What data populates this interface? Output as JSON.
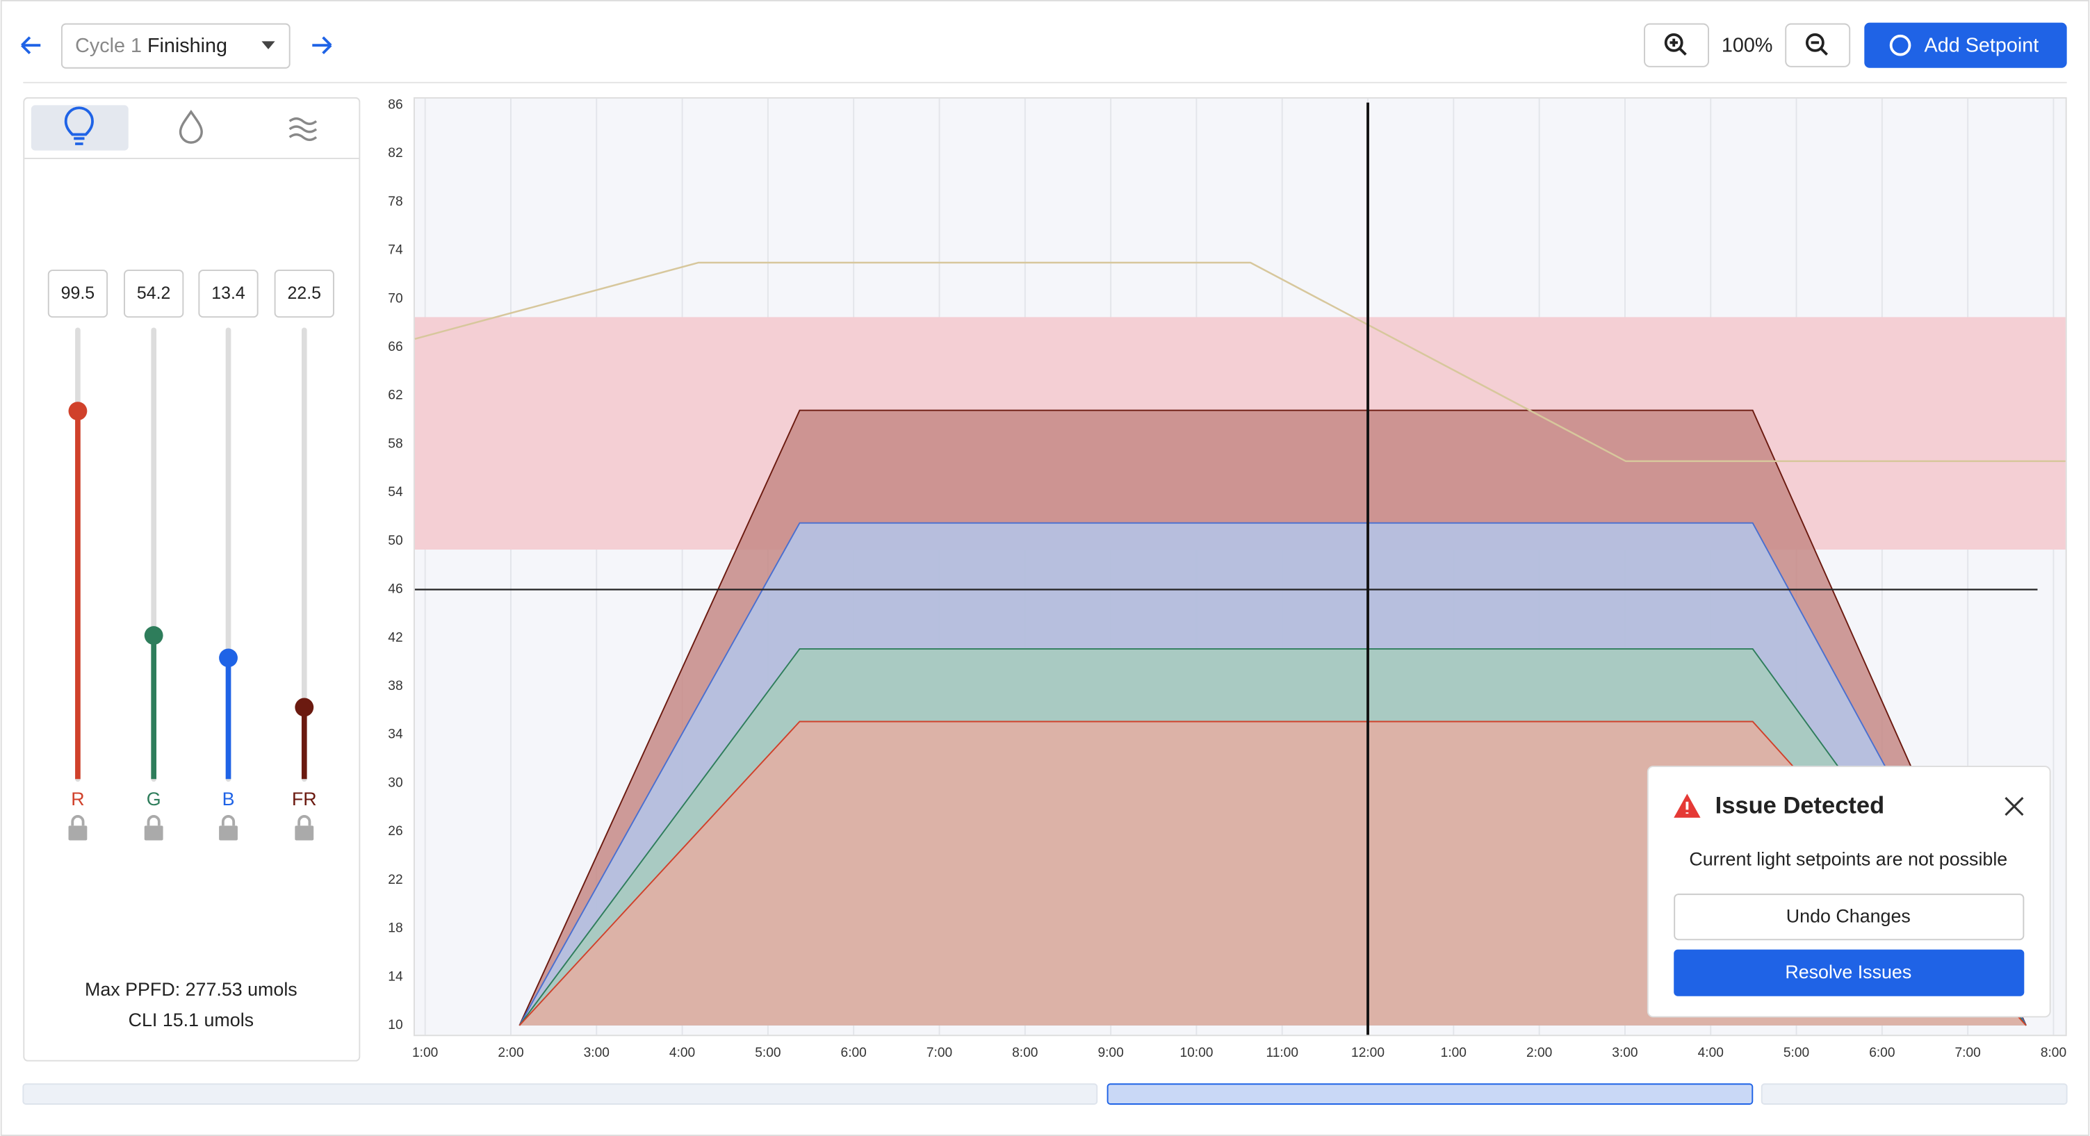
{
  "toolbar": {
    "cycle_prefix": "Cycle 1",
    "cycle_name": "Finishing",
    "zoom": "100%",
    "add_button": "Add Setpoint"
  },
  "sliders": [
    {
      "value": "99.5",
      "label": "R",
      "color": "#d0412b",
      "level": 82
    },
    {
      "value": "54.2",
      "label": "G",
      "color": "#2e7d5b",
      "level": 32
    },
    {
      "value": "13.4",
      "label": "B",
      "color": "#1f63e6",
      "level": 27
    },
    {
      "value": "22.5",
      "label": "FR",
      "color": "#6b1a10",
      "level": 16
    }
  ],
  "summary": {
    "ppfd_label": "Max PPFD:",
    "ppfd_value": "277.53 umols",
    "cli_label": "CLI",
    "cli_value": "15.1 umols"
  },
  "chart_data": {
    "type": "area",
    "ylim": [
      10,
      86
    ],
    "yticks": [
      10,
      14,
      18,
      22,
      26,
      30,
      34,
      38,
      42,
      46,
      50,
      54,
      58,
      62,
      66,
      70,
      74,
      78,
      82,
      86
    ],
    "xlim": [
      0.88,
      20.14
    ],
    "xticks": [
      {
        "value": 1,
        "label": "1:00"
      },
      {
        "value": 2,
        "label": "2:00"
      },
      {
        "value": 3,
        "label": "3:00"
      },
      {
        "value": 4,
        "label": "4:00"
      },
      {
        "value": 5,
        "label": "5:00"
      },
      {
        "value": 6,
        "label": "6:00"
      },
      {
        "value": 7,
        "label": "7:00"
      },
      {
        "value": 8,
        "label": "8:00"
      },
      {
        "value": 9,
        "label": "9:00"
      },
      {
        "value": 10,
        "label": "10:00"
      },
      {
        "value": 11,
        "label": "11:00"
      },
      {
        "value": 12,
        "label": "12:00"
      },
      {
        "value": 13,
        "label": "1:00"
      },
      {
        "value": 14,
        "label": "2:00"
      },
      {
        "value": 15,
        "label": "3:00"
      },
      {
        "value": 16,
        "label": "4:00"
      },
      {
        "value": 17,
        "label": "5:00"
      },
      {
        "value": 18,
        "label": "6:00"
      },
      {
        "value": 19,
        "label": "7:00"
      },
      {
        "value": 20,
        "label": "8:00"
      }
    ],
    "grid": true,
    "band": [
      49.3,
      68.5
    ],
    "band_color": "#f4cfd4",
    "hline": 46,
    "vline": 12,
    "series": [
      {
        "color": "#c58a86",
        "stroke": "#6b1a10",
        "x": [
          2.1,
          5.37,
          16.49,
          19.68
        ],
        "values": [
          10,
          60.8,
          60.8,
          10
        ]
      },
      {
        "color": "#b3c6ea",
        "stroke": "#4a6fcf",
        "x": [
          2.1,
          5.37,
          16.49,
          19.68
        ],
        "values": [
          10,
          51.5,
          51.5,
          10
        ]
      },
      {
        "color": "#a7cbbd",
        "stroke": "#2e7d5b",
        "x": [
          2.1,
          5.37,
          16.49,
          19.68
        ],
        "values": [
          10,
          41.1,
          41.1,
          10
        ]
      },
      {
        "color": "#e5aea2",
        "stroke": "#d0412b",
        "x": [
          2.1,
          5.37,
          16.49,
          19.68
        ],
        "values": [
          10,
          35.1,
          35.1,
          10
        ]
      },
      {
        "color": "#d7c79c",
        "type": "line",
        "x": [
          0.88,
          4.19,
          10.63,
          15.01,
          20.14
        ],
        "values": [
          66.7,
          73,
          73,
          56.6,
          56.6
        ]
      }
    ]
  },
  "dialog": {
    "title": "Issue Detected",
    "message": "Current light setpoints are not possible",
    "undo": "Undo Changes",
    "resolve": "Resolve Issues"
  }
}
